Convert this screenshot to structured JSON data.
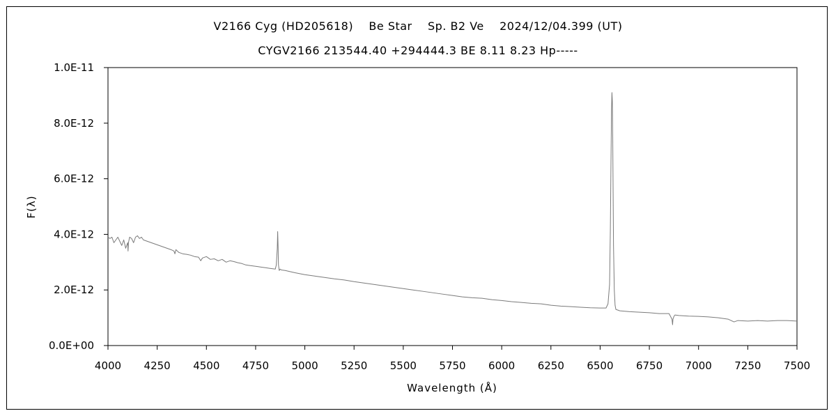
{
  "chart_data": {
    "type": "line",
    "title": "V2166 Cyg (HD205618)    Be Star    Sp. B2 Ve    2024/12/04.399 (UT)",
    "subtitle": "CYGV2166 213544.40 +294444.3 BE 8.11 8.23 Hp-----",
    "xlabel": "Wavelength (Å)",
    "ylabel": "F(λ)",
    "xlim": [
      4000,
      7500
    ],
    "ylim": [
      0,
      1e-11
    ],
    "grid": false,
    "legend": "none",
    "line_color": "#7a7a7a",
    "xticks": [
      4000,
      4250,
      4500,
      4750,
      5000,
      5250,
      5500,
      5750,
      6000,
      6250,
      6500,
      6750,
      7000,
      7250,
      7500
    ],
    "xtick_labels": [
      "4000",
      "4250",
      "4500",
      "4750",
      "5000",
      "5250",
      "5500",
      "5750",
      "6000",
      "6250",
      "6500",
      "6750",
      "7000",
      "7250",
      "7500"
    ],
    "yticks": [
      0,
      2e-12,
      4e-12,
      6e-12,
      8e-12,
      1e-11
    ],
    "ytick_labels": [
      "0.0E+00",
      "2.0E-12",
      "4.0E-12",
      "6.0E-12",
      "8.0E-12",
      "1.0E-11"
    ],
    "series": [
      {
        "x": [
          4000,
          4010,
          4020,
          4030,
          4040,
          4050,
          4060,
          4070,
          4080,
          4090,
          4100,
          4102,
          4104,
          4110,
          4120,
          4130,
          4140,
          4150,
          4160,
          4170,
          4180,
          4200,
          4220,
          4240,
          4260,
          4280,
          4300,
          4320,
          4335,
          4340,
          4345,
          4360,
          4380,
          4400,
          4420,
          4440,
          4460,
          4471,
          4480,
          4500,
          4520,
          4540,
          4560,
          4580,
          4600,
          4620,
          4640,
          4660,
          4680,
          4700,
          4720,
          4740,
          4760,
          4780,
          4800,
          4820,
          4840,
          4850,
          4855,
          4860,
          4862,
          4864,
          4866,
          4870,
          4875,
          4880,
          4900,
          4950,
          5000,
          5050,
          5100,
          5150,
          5200,
          5250,
          5300,
          5350,
          5400,
          5450,
          5500,
          5550,
          5600,
          5650,
          5700,
          5750,
          5800,
          5850,
          5900,
          5950,
          6000,
          6050,
          6100,
          6150,
          6200,
          6250,
          6300,
          6350,
          6400,
          6450,
          6500,
          6530,
          6540,
          6548,
          6552,
          6555,
          6558,
          6560,
          6562,
          6564,
          6566,
          6568,
          6572,
          6576,
          6580,
          6600,
          6650,
          6700,
          6750,
          6800,
          6850,
          6865,
          6868,
          6870,
          6875,
          6880,
          6900,
          6950,
          7000,
          7050,
          7100,
          7150,
          7180,
          7200,
          7250,
          7300,
          7350,
          7400,
          7450,
          7500
        ],
        "y": [
          3.9e-12,
          3.85e-12,
          3.9e-12,
          3.7e-12,
          3.8e-12,
          3.9e-12,
          3.75e-12,
          3.6e-12,
          3.8e-12,
          3.5e-12,
          3.7e-12,
          3.4e-12,
          3.7e-12,
          3.9e-12,
          3.85e-12,
          3.7e-12,
          3.9e-12,
          3.95e-12,
          3.85e-12,
          3.9e-12,
          3.8e-12,
          3.75e-12,
          3.7e-12,
          3.65e-12,
          3.6e-12,
          3.55e-12,
          3.5e-12,
          3.45e-12,
          3.4e-12,
          3.3e-12,
          3.45e-12,
          3.35e-12,
          3.3e-12,
          3.28e-12,
          3.25e-12,
          3.2e-12,
          3.18e-12,
          3.05e-12,
          3.15e-12,
          3.2e-12,
          3.1e-12,
          3.12e-12,
          3.05e-12,
          3.1e-12,
          3e-12,
          3.05e-12,
          3.02e-12,
          2.98e-12,
          2.95e-12,
          2.9e-12,
          2.88e-12,
          2.86e-12,
          2.84e-12,
          2.82e-12,
          2.8e-12,
          2.78e-12,
          2.76e-12,
          2.75e-12,
          2.9e-12,
          3.5e-12,
          4.1e-12,
          3.6e-12,
          2.9e-12,
          2.7e-12,
          2.75e-12,
          2.72e-12,
          2.7e-12,
          2.62e-12,
          2.55e-12,
          2.5e-12,
          2.45e-12,
          2.4e-12,
          2.36e-12,
          2.3e-12,
          2.25e-12,
          2.2e-12,
          2.15e-12,
          2.1e-12,
          2.05e-12,
          2e-12,
          1.95e-12,
          1.9e-12,
          1.85e-12,
          1.8e-12,
          1.75e-12,
          1.72e-12,
          1.7e-12,
          1.65e-12,
          1.62e-12,
          1.58e-12,
          1.55e-12,
          1.52e-12,
          1.5e-12,
          1.45e-12,
          1.42e-12,
          1.4e-12,
          1.38e-12,
          1.36e-12,
          1.35e-12,
          1.35e-12,
          1.5e-12,
          2.2e-12,
          4.2e-12,
          6.5e-12,
          8.5e-12,
          9.1e-12,
          8.8e-12,
          7.5e-12,
          5.5e-12,
          3.6e-12,
          2e-12,
          1.45e-12,
          1.3e-12,
          1.25e-12,
          1.22e-12,
          1.2e-12,
          1.18e-12,
          1.15e-12,
          1.15e-12,
          9.5e-13,
          7.5e-13,
          9.5e-13,
          1.05e-12,
          1.1e-12,
          1.08e-12,
          1.06e-12,
          1.05e-12,
          1.03e-12,
          1e-12,
          9.5e-13,
          8.5e-13,
          9e-13,
          8.8e-13,
          9e-13,
          8.8e-13,
          9e-13,
          9e-13,
          8.8e-13
        ]
      }
    ]
  }
}
